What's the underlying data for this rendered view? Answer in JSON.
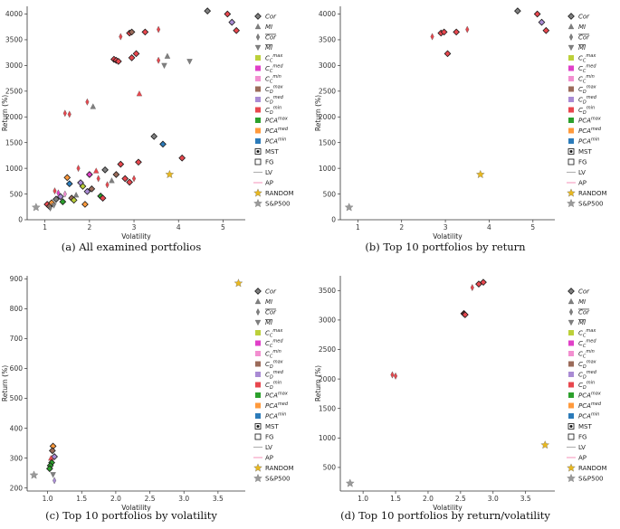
{
  "colors": {
    "Cor": "#7f7f7f",
    "MI": "#7f7f7f",
    "Cor_bar": "#7f7f7f",
    "MI_bar": "#7f7f7f",
    "CCmax": "#bcd03a",
    "CCmed": "#e040c8",
    "CCmin": "#f28fd0",
    "CDmax": "#9b6b5a",
    "CDmed": "#a98bd4",
    "CDmin": "#e8474e",
    "PCAmax": "#2ca02c",
    "PCAmed": "#ff9a3c",
    "PCAmin": "#2b7bba",
    "MST": "#111111",
    "FG": "#111111",
    "LV": "#b0b0b0",
    "AP": "#f59ac0",
    "RANDOM": "#e8b820",
    "SP500": "#9a9a9a",
    "axis": "#333333"
  },
  "legend": [
    {
      "key": "Cor",
      "label": "Cor",
      "italic": true,
      "overline": false,
      "marker": "diamond"
    },
    {
      "key": "MI",
      "label": "MI",
      "italic": true,
      "overline": false,
      "marker": "triangle"
    },
    {
      "key": "Cor_bar",
      "label": "Cor",
      "italic": true,
      "overline": true,
      "marker": "thin-diamond"
    },
    {
      "key": "MI_bar",
      "label": "MI",
      "italic": true,
      "overline": true,
      "marker": "triangle-down"
    },
    {
      "key": "CCmax",
      "label": "C",
      "sub": "C",
      "sup": "max",
      "italic": true,
      "marker": "square"
    },
    {
      "key": "CCmed",
      "label": "C",
      "sub": "C",
      "sup": "med",
      "italic": true,
      "marker": "square"
    },
    {
      "key": "CCmin",
      "label": "C",
      "sub": "C",
      "sup": "min",
      "italic": true,
      "marker": "square"
    },
    {
      "key": "CDmax",
      "label": "C",
      "sub": "D",
      "sup": "max",
      "italic": true,
      "marker": "square"
    },
    {
      "key": "CDmed",
      "label": "C",
      "sub": "D",
      "sup": "med",
      "italic": true,
      "marker": "square"
    },
    {
      "key": "CDmin",
      "label": "C",
      "sub": "D",
      "sup": "min",
      "italic": true,
      "marker": "square"
    },
    {
      "key": "PCAmax",
      "label": "PCA",
      "sup": "max",
      "italic": true,
      "marker": "square"
    },
    {
      "key": "PCAmed",
      "label": "PCA",
      "sup": "med",
      "italic": true,
      "marker": "square"
    },
    {
      "key": "PCAmin",
      "label": "PCA",
      "sup": "min",
      "italic": true,
      "marker": "square"
    },
    {
      "key": "MST",
      "label": "MST",
      "marker": "mst"
    },
    {
      "key": "FG",
      "label": "FG",
      "marker": "open-square"
    },
    {
      "key": "LV",
      "label": "LV",
      "marker": "line"
    },
    {
      "key": "AP",
      "label": "AP",
      "marker": "line"
    },
    {
      "key": "RANDOM",
      "label": "RANDOM",
      "marker": "star"
    },
    {
      "key": "SP500",
      "label": "S&P500",
      "marker": "star"
    }
  ],
  "chart_data": [
    {
      "type": "scatter",
      "caption": "(a) All examined portfolios",
      "xlabel": "Volatility",
      "ylabel": "Return (%)",
      "xlim": [
        0.6,
        5.5
      ],
      "ylim": [
        0,
        4150
      ],
      "xticks": [
        1,
        2,
        3,
        4,
        5
      ],
      "yticks": [
        0,
        500,
        1000,
        1500,
        2000,
        2500,
        3000,
        3500,
        4000
      ],
      "points": [
        {
          "x": 4.65,
          "y": 4060,
          "s": "Cor",
          "m": "D"
        },
        {
          "x": 5.1,
          "y": 4000,
          "s": "CDmin",
          "m": "D"
        },
        {
          "x": 5.2,
          "y": 3840,
          "s": "CDmed",
          "m": "D"
        },
        {
          "x": 5.3,
          "y": 3680,
          "s": "CDmin",
          "m": "D"
        },
        {
          "x": 2.7,
          "y": 3560,
          "s": "CDmin",
          "m": "d"
        },
        {
          "x": 2.9,
          "y": 3630,
          "s": "CDmin",
          "m": "D"
        },
        {
          "x": 2.95,
          "y": 3650,
          "s": "CDmax",
          "m": "D"
        },
        {
          "x": 3.25,
          "y": 3650,
          "s": "CDmin",
          "m": "D"
        },
        {
          "x": 3.55,
          "y": 3700,
          "s": "CDmin",
          "m": "d"
        },
        {
          "x": 3.75,
          "y": 3180,
          "s": "MI",
          "m": "^"
        },
        {
          "x": 3.68,
          "y": 3000,
          "s": "MI_bar",
          "m": "v"
        },
        {
          "x": 3.55,
          "y": 3100,
          "s": "CDmin",
          "m": "d"
        },
        {
          "x": 4.25,
          "y": 3080,
          "s": "MI_bar",
          "m": "v"
        },
        {
          "x": 2.55,
          "y": 3120,
          "s": "CDmin",
          "m": "D"
        },
        {
          "x": 2.6,
          "y": 3100,
          "s": "CDmin",
          "m": "D"
        },
        {
          "x": 2.65,
          "y": 3080,
          "s": "CDmin",
          "m": "D"
        },
        {
          "x": 2.95,
          "y": 3150,
          "s": "CDmin",
          "m": "D"
        },
        {
          "x": 3.05,
          "y": 3230,
          "s": "CDmin",
          "m": "D"
        },
        {
          "x": 3.12,
          "y": 2450,
          "s": "CDmin",
          "m": "^"
        },
        {
          "x": 1.95,
          "y": 2290,
          "s": "CDmin",
          "m": "d"
        },
        {
          "x": 2.08,
          "y": 2200,
          "s": "MI",
          "m": "^"
        },
        {
          "x": 1.45,
          "y": 2070,
          "s": "CDmin",
          "m": "d"
        },
        {
          "x": 1.55,
          "y": 2050,
          "s": "CDmin",
          "m": "d"
        },
        {
          "x": 3.45,
          "y": 1620,
          "s": "Cor",
          "m": "D"
        },
        {
          "x": 3.65,
          "y": 1470,
          "s": "PCAmin",
          "m": "D"
        },
        {
          "x": 4.08,
          "y": 1200,
          "s": "CDmin",
          "m": "D"
        },
        {
          "x": 3.8,
          "y": 880,
          "s": "RANDOM",
          "m": "*"
        },
        {
          "x": 0.8,
          "y": 240,
          "s": "SP500",
          "m": "*"
        },
        {
          "x": 1.05,
          "y": 300,
          "s": "CDmin",
          "m": "D"
        },
        {
          "x": 1.1,
          "y": 260,
          "s": "CDmax",
          "m": "D"
        },
        {
          "x": 1.15,
          "y": 330,
          "s": "PCAmed",
          "m": "D"
        },
        {
          "x": 1.2,
          "y": 280,
          "s": "MI_bar",
          "m": "v"
        },
        {
          "x": 1.25,
          "y": 400,
          "s": "Cor",
          "m": "D"
        },
        {
          "x": 1.35,
          "y": 450,
          "s": "CDmed",
          "m": "D"
        },
        {
          "x": 1.4,
          "y": 350,
          "s": "PCAmax",
          "m": "D"
        },
        {
          "x": 1.45,
          "y": 500,
          "s": "CCmin",
          "m": "d"
        },
        {
          "x": 1.5,
          "y": 820,
          "s": "PCAmed",
          "m": "D"
        },
        {
          "x": 1.55,
          "y": 700,
          "s": "PCAmin",
          "m": "D"
        },
        {
          "x": 1.6,
          "y": 420,
          "s": "CDmax",
          "m": "D"
        },
        {
          "x": 1.7,
          "y": 480,
          "s": "MI",
          "m": "^"
        },
        {
          "x": 1.75,
          "y": 1000,
          "s": "CDmin",
          "m": "d"
        },
        {
          "x": 1.85,
          "y": 650,
          "s": "CCmax",
          "m": "D"
        },
        {
          "x": 1.9,
          "y": 300,
          "s": "PCAmed",
          "m": "D"
        },
        {
          "x": 1.95,
          "y": 550,
          "s": "CDmed",
          "m": "D"
        },
        {
          "x": 2.0,
          "y": 880,
          "s": "CCmed",
          "m": "D"
        },
        {
          "x": 2.05,
          "y": 600,
          "s": "CDmax",
          "m": "D"
        },
        {
          "x": 2.15,
          "y": 950,
          "s": "CDmin",
          "m": "^"
        },
        {
          "x": 2.2,
          "y": 800,
          "s": "CDmin",
          "m": "d"
        },
        {
          "x": 2.25,
          "y": 460,
          "s": "PCAmax",
          "m": "D"
        },
        {
          "x": 2.35,
          "y": 970,
          "s": "Cor",
          "m": "D"
        },
        {
          "x": 2.4,
          "y": 680,
          "s": "CDmin",
          "m": "d"
        },
        {
          "x": 2.5,
          "y": 760,
          "s": "MI",
          "m": "^"
        },
        {
          "x": 2.6,
          "y": 880,
          "s": "CDmax",
          "m": "D"
        },
        {
          "x": 2.7,
          "y": 1080,
          "s": "CDmin",
          "m": "D"
        },
        {
          "x": 2.8,
          "y": 800,
          "s": "CDmin",
          "m": "D"
        },
        {
          "x": 2.9,
          "y": 730,
          "s": "CDmin",
          "m": "D"
        },
        {
          "x": 3.0,
          "y": 800,
          "s": "CDmin",
          "m": "d"
        },
        {
          "x": 3.1,
          "y": 1120,
          "s": "CDmin",
          "m": "D"
        },
        {
          "x": 1.3,
          "y": 520,
          "s": "CCmed",
          "m": "d"
        },
        {
          "x": 1.65,
          "y": 380,
          "s": "CCmax",
          "m": "D"
        },
        {
          "x": 1.8,
          "y": 720,
          "s": "CDmed",
          "m": "D"
        },
        {
          "x": 2.3,
          "y": 420,
          "s": "CDmin",
          "m": "D"
        },
        {
          "x": 1.12,
          "y": 230,
          "s": "Cor_bar",
          "m": "d"
        },
        {
          "x": 1.22,
          "y": 560,
          "s": "CDmin",
          "m": "d"
        }
      ]
    },
    {
      "type": "scatter",
      "caption": "(b) Top 10 portfolios by return",
      "xlabel": "Volatility",
      "ylabel": "Return (%)",
      "xlim": [
        0.6,
        5.5
      ],
      "ylim": [
        0,
        4150
      ],
      "xticks": [
        1,
        2,
        3,
        4,
        5
      ],
      "yticks": [
        0,
        500,
        1000,
        1500,
        2000,
        2500,
        3000,
        3500,
        4000
      ],
      "points": [
        {
          "x": 4.65,
          "y": 4060,
          "s": "Cor",
          "m": "D"
        },
        {
          "x": 5.1,
          "y": 4000,
          "s": "CDmin",
          "m": "D"
        },
        {
          "x": 5.2,
          "y": 3840,
          "s": "CDmed",
          "m": "D"
        },
        {
          "x": 5.3,
          "y": 3680,
          "s": "CDmin",
          "m": "D"
        },
        {
          "x": 2.7,
          "y": 3560,
          "s": "CDmin",
          "m": "d"
        },
        {
          "x": 2.9,
          "y": 3630,
          "s": "CDmin",
          "m": "D"
        },
        {
          "x": 2.97,
          "y": 3650,
          "s": "CDmin",
          "m": "D"
        },
        {
          "x": 3.25,
          "y": 3650,
          "s": "CDmin",
          "m": "D"
        },
        {
          "x": 3.5,
          "y": 3700,
          "s": "CDmin",
          "m": "d"
        },
        {
          "x": 3.05,
          "y": 3230,
          "s": "CDmin",
          "m": "D"
        },
        {
          "x": 3.8,
          "y": 880,
          "s": "RANDOM",
          "m": "*"
        },
        {
          "x": 0.8,
          "y": 240,
          "s": "SP500",
          "m": "*"
        }
      ]
    },
    {
      "type": "scatter",
      "caption": "(c) Top 10 portfolios by volatility",
      "xlabel": "Volatility",
      "ylabel": "Return (%)",
      "xlim": [
        0.7,
        3.9
      ],
      "ylim": [
        190,
        910
      ],
      "xticks": [
        1.0,
        1.5,
        2.0,
        2.5,
        3.0,
        3.5
      ],
      "yticks": [
        200,
        300,
        400,
        500,
        600,
        700,
        800,
        900
      ],
      "points": [
        {
          "x": 1.08,
          "y": 340,
          "s": "PCAmed",
          "m": "D"
        },
        {
          "x": 1.07,
          "y": 325,
          "s": "CDmax",
          "m": "D"
        },
        {
          "x": 1.1,
          "y": 305,
          "s": "CDmed",
          "m": "D"
        },
        {
          "x": 1.05,
          "y": 300,
          "s": "CDmin",
          "m": "^"
        },
        {
          "x": 1.06,
          "y": 285,
          "s": "PCAmax",
          "m": "D"
        },
        {
          "x": 1.04,
          "y": 275,
          "s": "PCAmax",
          "m": "D"
        },
        {
          "x": 1.03,
          "y": 265,
          "s": "PCAmax",
          "m": "D"
        },
        {
          "x": 1.08,
          "y": 245,
          "s": "MI_bar",
          "m": "v"
        },
        {
          "x": 1.1,
          "y": 225,
          "s": "CDmed",
          "m": "d"
        },
        {
          "x": 3.8,
          "y": 885,
          "s": "RANDOM",
          "m": "*"
        },
        {
          "x": 0.8,
          "y": 243,
          "s": "SP500",
          "m": "*"
        }
      ]
    },
    {
      "type": "scatter",
      "caption": "(d) Top 10 portfolios by return/volatility",
      "xlabel": "Volatility",
      "ylabel": "Return (%)",
      "xlim": [
        0.65,
        3.95
      ],
      "ylim": [
        100,
        3750
      ],
      "xticks": [
        1.0,
        1.5,
        2.0,
        2.5,
        3.0,
        3.5
      ],
      "yticks": [
        500,
        1000,
        1500,
        2000,
        2500,
        3000,
        3500
      ],
      "points": [
        {
          "x": 2.85,
          "y": 3640,
          "s": "CDmin",
          "m": "D"
        },
        {
          "x": 2.78,
          "y": 3610,
          "s": "CDmin",
          "m": "D"
        },
        {
          "x": 2.68,
          "y": 3550,
          "s": "CDmin",
          "m": "d"
        },
        {
          "x": 2.55,
          "y": 3110,
          "s": "CDmin",
          "m": "D"
        },
        {
          "x": 2.56,
          "y": 3100,
          "s": "CDmin",
          "m": "D"
        },
        {
          "x": 2.57,
          "y": 3090,
          "s": "CDmin",
          "m": "D"
        },
        {
          "x": 1.45,
          "y": 2070,
          "s": "CDmin",
          "m": "d"
        },
        {
          "x": 1.5,
          "y": 2050,
          "s": "CDmin",
          "m": "d"
        },
        {
          "x": 3.8,
          "y": 880,
          "s": "RANDOM",
          "m": "*"
        },
        {
          "x": 0.8,
          "y": 230,
          "s": "SP500",
          "m": "*"
        }
      ]
    }
  ]
}
